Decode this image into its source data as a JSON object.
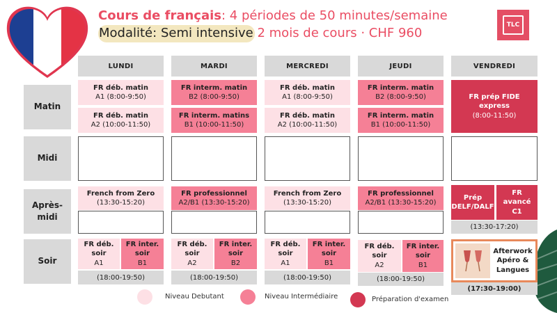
{
  "header": {
    "title_bold": "Cours de français",
    "title_rest": ": 4 périodes de 50 minutes/semaine",
    "modalite_label": "Modalité:",
    "modalite_value": "Semi intensive",
    "duration_price": " 2 mois de cours · CHF 960",
    "logo_text": "TLC"
  },
  "days": [
    "LUNDI",
    "MARDI",
    "MERCREDI",
    "JEUDI",
    "VENDREDI"
  ],
  "periods": {
    "matin": "Matin",
    "midi": "Midi",
    "apres_midi_1": "Après-",
    "apres_midi_2": "midi",
    "soir": "Soir"
  },
  "matin": {
    "lundi_1": {
      "title": "FR déb. matin",
      "sub": "A1 (8:00-9:50)"
    },
    "lundi_2": {
      "title": "FR déb. matin",
      "sub": "A2 (10:00-11:50)"
    },
    "mardi_1": {
      "title": "FR interm. matin",
      "sub": "B2 (8:00-9:50)"
    },
    "mardi_2": {
      "title": "FR interm. matins",
      "sub": "B1 (10:00-11:50)"
    },
    "mercredi_1": {
      "title": "FR déb. matin",
      "sub": "A1 (8:00-9:50)"
    },
    "mercredi_2": {
      "title": "FR déb. matin",
      "sub": "A2 (10:00-11:50)"
    },
    "jeudi_1": {
      "title": "FR interm. matin",
      "sub": "B2 (8:00-9:50)"
    },
    "jeudi_2": {
      "title": "FR interm. matin",
      "sub": "B1 (10:00-11:50)"
    },
    "vendredi": {
      "title": "FR prép FIDE express",
      "sub": "(8:00-11:50)"
    }
  },
  "apres_midi": {
    "lundi": {
      "title": "French from Zero",
      "sub": "(13:30-15:20)"
    },
    "mardi": {
      "title": "FR professionnel",
      "sub": "A2/B1 (13:30-15:20)"
    },
    "mercredi": {
      "title": "French from Zero",
      "sub": "(13:30-15:20)"
    },
    "jeudi": {
      "title": "FR professionnel",
      "sub": "A2/B1 (13:30-15:20)"
    },
    "vendredi_a": "Prép DELF/DALF",
    "vendredi_b": "FR avancé C1",
    "vendredi_time": "(13:30-17:20)"
  },
  "soir": {
    "lundi_a": {
      "title": "FR déb. soir",
      "sub": "A1"
    },
    "lundi_b": {
      "title": "FR inter. soir",
      "sub": "B1"
    },
    "mardi_a": {
      "title": "FR déb. soir",
      "sub": "A2"
    },
    "mardi_b": {
      "title": "FR inter. soir",
      "sub": "B2"
    },
    "mercredi_a": {
      "title": "FR déb. soir",
      "sub": "A1"
    },
    "mercredi_b": {
      "title": "FR inter. soir",
      "sub": "B1"
    },
    "jeudi_a": {
      "title": "FR déb. soir",
      "sub": "A2"
    },
    "jeudi_b": {
      "title": "FR inter. soir",
      "sub": "B1"
    },
    "time": "(18:00-19:50)",
    "vendredi_title": "Afterwork Apéro & Langues",
    "vendredi_time": "(17:30-19:00)"
  },
  "legend": {
    "debutant": "Niveau Debutant",
    "intermediaire": "Niveau Intermédiaire",
    "examen": "Préparation d'examen"
  },
  "colors": {
    "accent": "#ea4d63",
    "debutant": "#fde0e5",
    "intermediaire": "#f58096",
    "examen": "#d33852",
    "header_grey": "#d9d9d9"
  },
  "icons": {
    "heart_flag": "french-flag-heart-icon",
    "logo": "tlc-logo-icon",
    "afterwork": "wine-glasses-icon",
    "leaf": "palm-leaf-icon"
  }
}
